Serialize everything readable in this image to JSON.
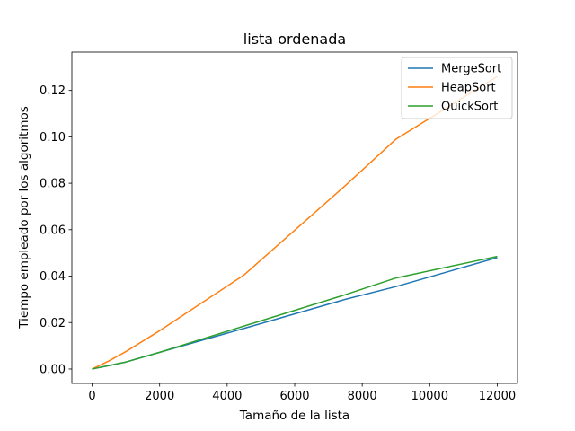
{
  "chart_data": {
    "type": "line",
    "title": "lista ordenada",
    "xlabel": "Tamaño de la lista",
    "ylabel": "Tiempo empleado por los algoritmos",
    "xlim": [
      -600,
      12600
    ],
    "ylim": [
      -0.0062,
      0.1365
    ],
    "xticks": [
      0,
      2000,
      4000,
      6000,
      8000,
      10000,
      12000
    ],
    "xtick_labels": [
      "0",
      "2000",
      "4000",
      "6000",
      "8000",
      "10000",
      "12000"
    ],
    "yticks": [
      0.0,
      0.02,
      0.04,
      0.06,
      0.08,
      0.1,
      0.12
    ],
    "ytick_labels": [
      "0.00",
      "0.02",
      "0.04",
      "0.06",
      "0.08",
      "0.10",
      "0.12"
    ],
    "grid": false,
    "legend_position": "top-right",
    "series": [
      {
        "name": "MergeSort",
        "color": "#1f77b4",
        "x": [
          0,
          100,
          500,
          1000,
          2000,
          4500,
          7500,
          9000,
          12000
        ],
        "y": [
          0.0,
          0.0003,
          0.0015,
          0.003,
          0.0072,
          0.0175,
          0.03,
          0.0355,
          0.048
        ]
      },
      {
        "name": "HeapSort",
        "color": "#ff7f0e",
        "x": [
          0,
          100,
          500,
          1000,
          2000,
          4500,
          7500,
          9000,
          12000
        ],
        "y": [
          0.0,
          0.0007,
          0.0035,
          0.0075,
          0.0165,
          0.0405,
          0.079,
          0.099,
          0.126
        ]
      },
      {
        "name": "QuickSort",
        "color": "#2ca02c",
        "x": [
          0,
          100,
          500,
          1000,
          2000,
          4500,
          7500,
          9000,
          12000
        ],
        "y": [
          0.0,
          0.0003,
          0.0015,
          0.003,
          0.0072,
          0.0185,
          0.032,
          0.0392,
          0.0485
        ]
      }
    ]
  }
}
